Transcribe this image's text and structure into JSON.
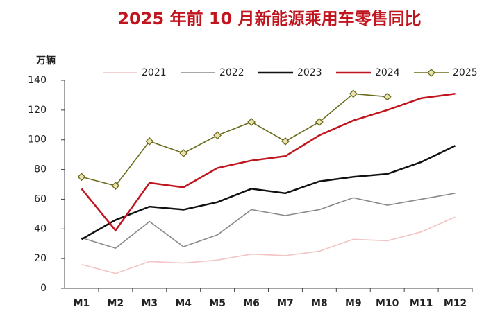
{
  "chart_data": {
    "type": "line",
    "title": "2025 年前 10 月新能源乘用车零售同比",
    "y_label": "万辆",
    "categories": [
      "M1",
      "M2",
      "M3",
      "M4",
      "M5",
      "M6",
      "M7",
      "M8",
      "M9",
      "M10",
      "M11",
      "M12"
    ],
    "ylim": [
      0,
      140
    ],
    "yticks": [
      0,
      20,
      40,
      60,
      80,
      100,
      120,
      140
    ],
    "series": [
      {
        "name": "2021",
        "color": "#f2c4c4",
        "values": [
          16,
          10,
          18,
          17,
          19,
          23,
          22,
          25,
          33,
          32,
          38,
          48
        ]
      },
      {
        "name": "2022",
        "color": "#8a8a8a",
        "values": [
          34,
          27,
          45,
          28,
          36,
          53,
          49,
          53,
          61,
          56,
          60,
          64
        ]
      },
      {
        "name": "2023",
        "color": "#111111",
        "values": [
          33,
          46,
          55,
          53,
          58,
          67,
          64,
          72,
          75,
          77,
          85,
          96
        ]
      },
      {
        "name": "2024",
        "color": "#c0141e",
        "values": [
          67,
          39,
          71,
          68,
          81,
          86,
          89,
          103,
          113,
          120,
          128,
          131
        ]
      },
      {
        "name": "2025",
        "color": "#6b6b1e",
        "marker": "diamond",
        "values": [
          75,
          69,
          99,
          91,
          103,
          112,
          99,
          112,
          131,
          129,
          null,
          null
        ]
      }
    ]
  }
}
